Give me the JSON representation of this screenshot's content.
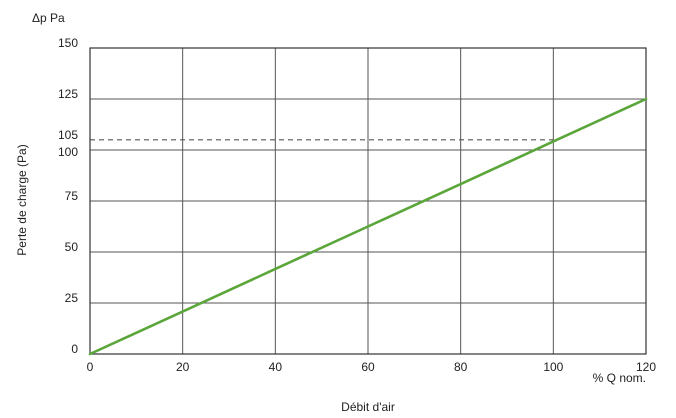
{
  "chart_data": {
    "type": "line",
    "title": "",
    "y_unit_label": "Δp Pa",
    "ylabel": "Perte de charge (Pa)",
    "xlabel": "Débit d'air",
    "x_unit_label": "% Q nom.",
    "xlim": [
      0,
      120
    ],
    "ylim": [
      0,
      150
    ],
    "x_ticks": [
      "0",
      "20",
      "40",
      "60",
      "80",
      "100",
      "120"
    ],
    "y_ticks": [
      "0",
      "25",
      "50",
      "75",
      "100",
      "125",
      "150"
    ],
    "grid": true,
    "series": [
      {
        "color": "#5aa63a",
        "x": [
          0,
          20,
          40,
          60,
          80,
          100,
          120
        ],
        "y": [
          0,
          20.8,
          41.7,
          62.5,
          83.3,
          104.2,
          125
        ]
      }
    ],
    "reference_line": {
      "label": "105",
      "y": 105,
      "x_end": 100,
      "style": "dashed",
      "color": "#555555"
    }
  }
}
